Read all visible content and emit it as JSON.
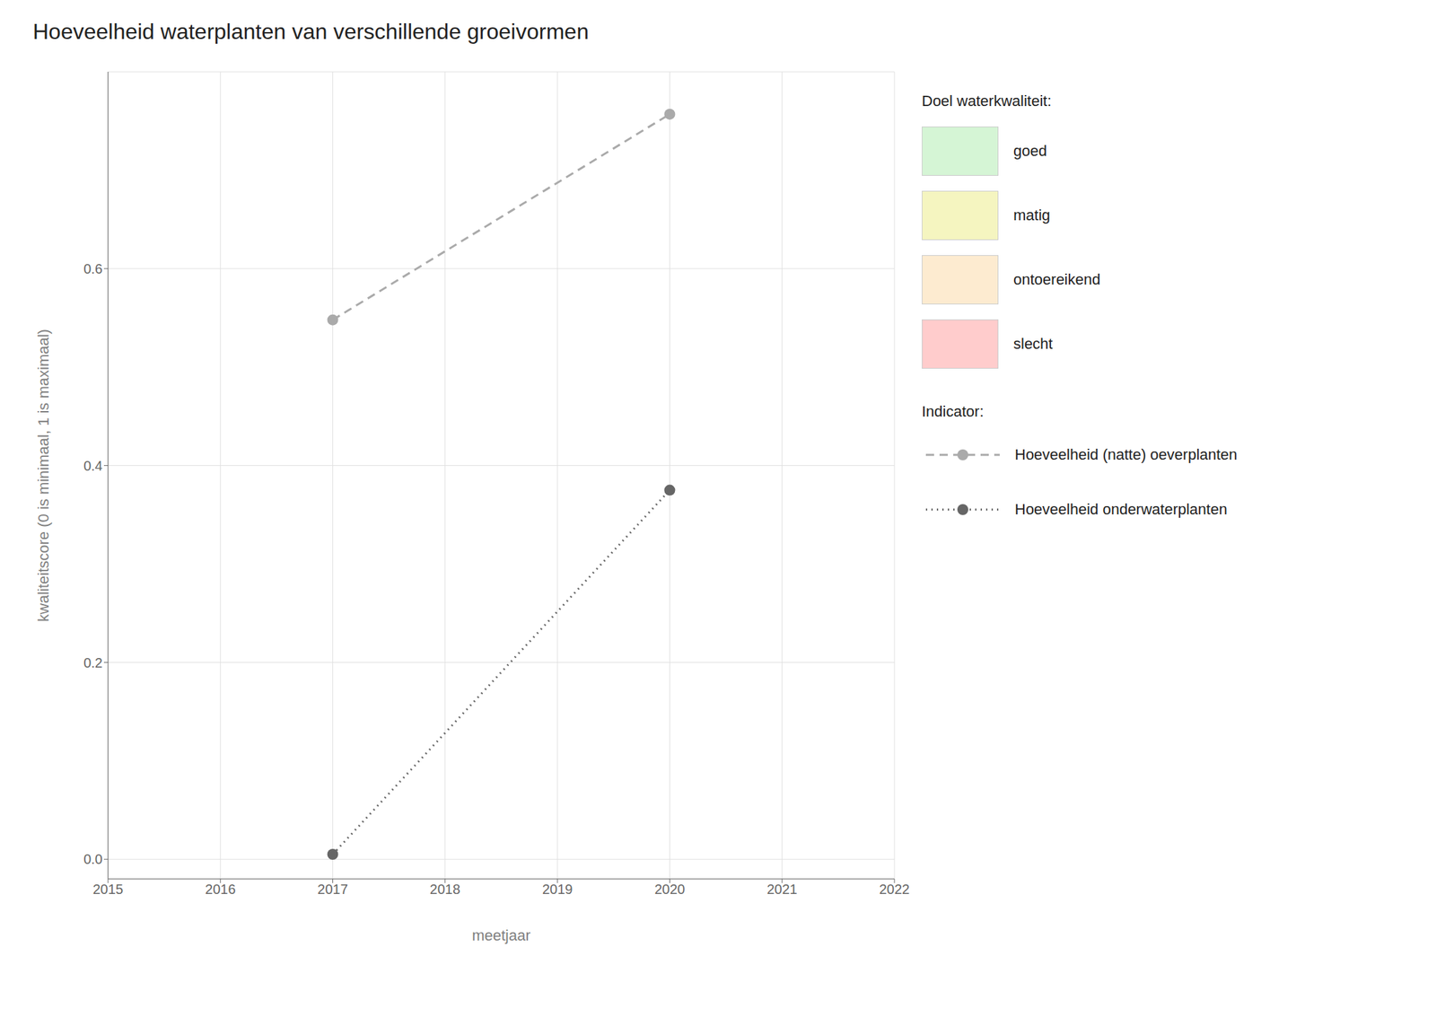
{
  "chart_data": {
    "type": "line",
    "title": "Hoeveelheid waterplanten van verschillende groeivormen",
    "x_label": "meetjaar",
    "y_label": "kwaliteitscore (0 is minimaal, 1 is maximaal)",
    "x": [
      2017,
      2020
    ],
    "series": [
      {
        "name": "Hoeveelheid (natte) oeverplanten",
        "color": "#aaaaaa",
        "values": [
          0.548,
          0.757
        ],
        "line_style": "dashed",
        "marker": "circle"
      },
      {
        "name": "Hoeveelheid onderwaterplanten",
        "color": "#666666",
        "values": [
          0.005,
          0.375
        ],
        "line_style": "dotted",
        "marker": "circle"
      }
    ],
    "xlim": [
      2015,
      2022
    ],
    "xticks": [
      2015,
      2016,
      2017,
      2018,
      2019,
      2020,
      2021,
      2022
    ],
    "ylim": [
      -0.02,
      0.8
    ],
    "yticks": [
      {
        "value": 0.0,
        "label": "0.0"
      },
      0.2,
      0.4,
      0.6
    ],
    "grid": true,
    "legend": "right",
    "legend_title": "Indicator:",
    "quality_title": "Doel waterkwaliteit:",
    "quality_labels": [
      "goed",
      "matig",
      "ontoereikend",
      "slecht"
    ],
    "quality_colors": [
      "#d5f5d5",
      "#f5f5c0",
      "#fdebd0",
      "#ffcccc"
    ]
  }
}
